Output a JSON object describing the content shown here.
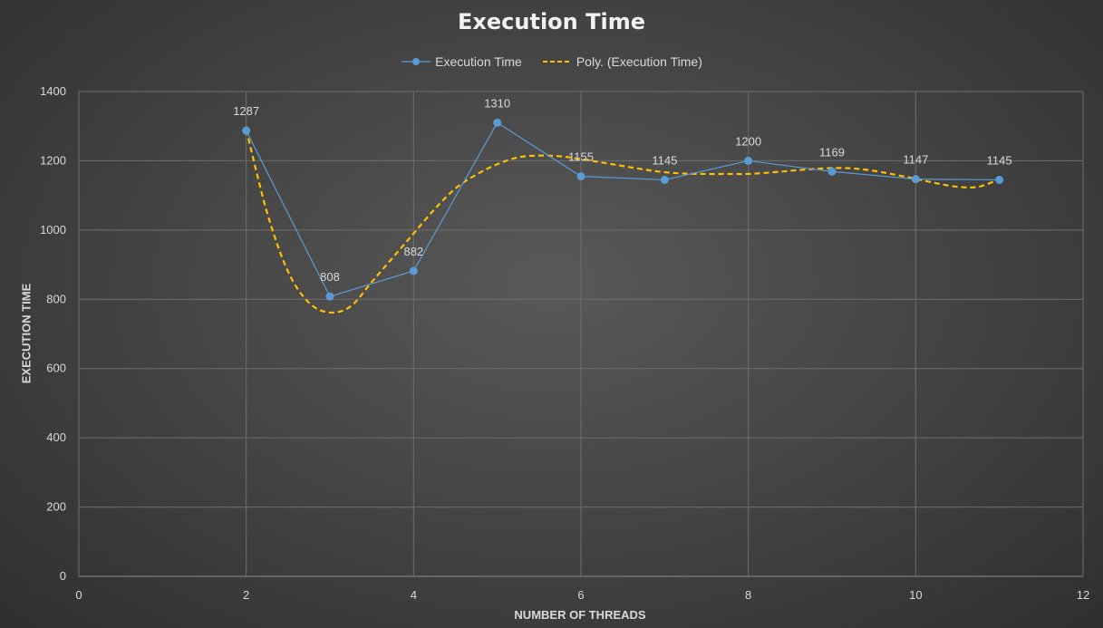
{
  "chart_data": {
    "type": "line",
    "title": "Execution Time",
    "xlabel": "NUMBER OF THREADS",
    "ylabel": "EXECUTION TIME",
    "xlim": [
      0,
      12
    ],
    "ylim": [
      0,
      1400
    ],
    "x_ticks": [
      0,
      2,
      4,
      6,
      8,
      10,
      12
    ],
    "y_ticks": [
      0,
      200,
      400,
      600,
      800,
      1000,
      1200,
      1400
    ],
    "grid": true,
    "legend_position": "top",
    "series": [
      {
        "name": "Execution Time",
        "color": "#5b9bd5",
        "marker": "circle",
        "x": [
          2,
          3,
          4,
          5,
          6,
          7,
          8,
          9,
          10,
          11
        ],
        "y": [
          1287,
          808,
          882,
          1310,
          1155,
          1145,
          1200,
          1169,
          1147,
          1145
        ],
        "data_labels": [
          "1287",
          "808",
          "882",
          "1310",
          "1155",
          "1145",
          "1200",
          "1169",
          "1147",
          "1145"
        ]
      },
      {
        "name": "Poly. (Execution Time)",
        "color": "#ffc000",
        "style": "dashed",
        "trendline_of": "Execution Time",
        "x": [
          2,
          2.25,
          2.5,
          2.75,
          3,
          3.25,
          3.5,
          3.75,
          4,
          4.25,
          4.5,
          4.75,
          5,
          5.25,
          5.5,
          5.75,
          6,
          6.25,
          6.5,
          6.75,
          7,
          7.25,
          7.5,
          7.75,
          8,
          8.25,
          8.5,
          8.75,
          9,
          9.25,
          9.5,
          9.75,
          10,
          10.25,
          10.5,
          10.75,
          11
        ],
        "y": [
          1290,
          1050,
          880,
          790,
          762,
          780,
          850,
          920,
          990,
          1060,
          1120,
          1160,
          1190,
          1210,
          1215,
          1213,
          1205,
          1195,
          1185,
          1175,
          1167,
          1163,
          1162,
          1162,
          1162,
          1166,
          1171,
          1176,
          1179,
          1178,
          1171,
          1160,
          1148,
          1135,
          1125,
          1125,
          1147
        ]
      }
    ]
  }
}
